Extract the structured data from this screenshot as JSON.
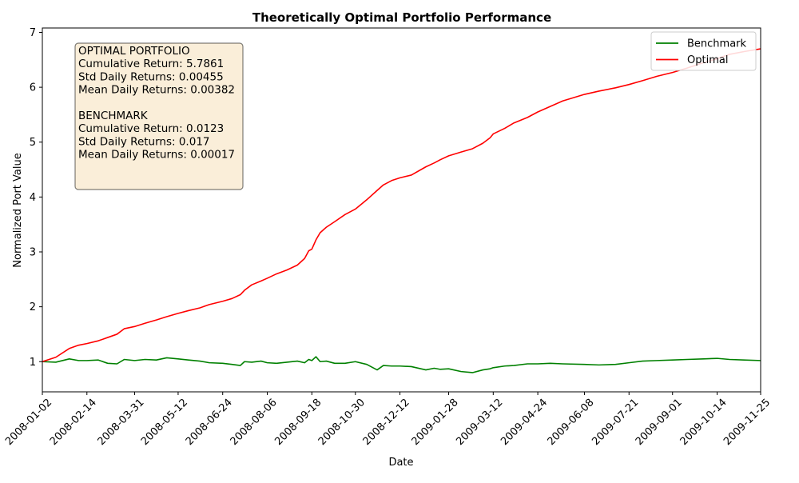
{
  "chart_data": {
    "type": "line",
    "title": "Theoretically Optimal Portfolio Performance",
    "xlabel": "Date",
    "ylabel": "Normalized Port Value",
    "xlim": [
      "2008-01-02",
      "2009-11-25"
    ],
    "ylim": [
      0.45,
      7.08
    ],
    "x_ticks": [
      "2008-01-02",
      "2008-02-14",
      "2008-03-31",
      "2008-05-12",
      "2008-06-24",
      "2008-08-06",
      "2008-09-18",
      "2008-10-30",
      "2008-12-12",
      "2009-01-28",
      "2009-03-12",
      "2009-04-24",
      "2009-06-08",
      "2009-07-21",
      "2009-09-01",
      "2009-10-14",
      "2009-11-25"
    ],
    "y_ticks": [
      "1",
      "2",
      "3",
      "4",
      "5",
      "6",
      "7"
    ],
    "y_tick_values": [
      1,
      2,
      3,
      4,
      5,
      6,
      7
    ],
    "legend_position": "top-right",
    "series": [
      {
        "name": "Benchmark",
        "color": "#008000",
        "x": [
          "2008-01-02",
          "2008-01-15",
          "2008-01-28",
          "2008-02-06",
          "2008-02-14",
          "2008-02-25",
          "2008-03-05",
          "2008-03-14",
          "2008-03-21",
          "2008-03-31",
          "2008-04-10",
          "2008-04-21",
          "2008-05-01",
          "2008-05-12",
          "2008-05-22",
          "2008-06-02",
          "2008-06-11",
          "2008-06-24",
          "2008-07-03",
          "2008-07-11",
          "2008-07-15",
          "2008-07-22",
          "2008-07-31",
          "2008-08-06",
          "2008-08-15",
          "2008-08-25",
          "2008-09-04",
          "2008-09-11",
          "2008-09-15",
          "2008-09-18",
          "2008-09-22",
          "2008-09-26",
          "2008-10-02",
          "2008-10-10",
          "2008-10-20",
          "2008-10-30",
          "2008-11-10",
          "2008-11-20",
          "2008-11-26",
          "2008-12-04",
          "2008-12-12",
          "2008-12-23",
          "2009-01-06",
          "2009-01-14",
          "2009-01-20",
          "2009-01-28",
          "2009-02-09",
          "2009-02-20",
          "2009-03-02",
          "2009-03-09",
          "2009-03-12",
          "2009-03-23",
          "2009-04-01",
          "2009-04-14",
          "2009-04-24",
          "2009-05-06",
          "2009-05-18",
          "2009-06-08",
          "2009-06-22",
          "2009-07-08",
          "2009-07-21",
          "2009-08-03",
          "2009-08-17",
          "2009-09-01",
          "2009-09-15",
          "2009-10-01",
          "2009-10-14",
          "2009-10-26",
          "2009-11-09",
          "2009-11-25"
        ],
        "values": [
          1.0,
          0.99,
          1.05,
          1.02,
          1.02,
          1.03,
          0.97,
          0.96,
          1.04,
          1.02,
          1.04,
          1.03,
          1.07,
          1.05,
          1.03,
          1.01,
          0.98,
          0.97,
          0.95,
          0.93,
          1.0,
          0.99,
          1.01,
          0.98,
          0.97,
          0.99,
          1.01,
          0.98,
          1.04,
          1.02,
          1.09,
          1.0,
          1.01,
          0.97,
          0.97,
          1.0,
          0.95,
          0.85,
          0.93,
          0.92,
          0.92,
          0.91,
          0.85,
          0.88,
          0.86,
          0.87,
          0.82,
          0.8,
          0.85,
          0.87,
          0.89,
          0.92,
          0.93,
          0.96,
          0.96,
          0.97,
          0.96,
          0.95,
          0.94,
          0.95,
          0.98,
          1.01,
          1.02,
          1.03,
          1.04,
          1.05,
          1.06,
          1.04,
          1.03,
          1.02
        ]
      },
      {
        "name": "Optimal",
        "color": "#ff0000",
        "x": [
          "2008-01-02",
          "2008-01-15",
          "2008-01-28",
          "2008-02-06",
          "2008-02-14",
          "2008-02-25",
          "2008-03-05",
          "2008-03-14",
          "2008-03-21",
          "2008-03-31",
          "2008-04-10",
          "2008-04-21",
          "2008-05-01",
          "2008-05-12",
          "2008-05-22",
          "2008-06-02",
          "2008-06-11",
          "2008-06-24",
          "2008-07-03",
          "2008-07-11",
          "2008-07-15",
          "2008-07-22",
          "2008-07-31",
          "2008-08-06",
          "2008-08-15",
          "2008-08-25",
          "2008-09-04",
          "2008-09-11",
          "2008-09-15",
          "2008-09-18",
          "2008-09-22",
          "2008-09-26",
          "2008-10-02",
          "2008-10-10",
          "2008-10-20",
          "2008-10-30",
          "2008-11-10",
          "2008-11-20",
          "2008-11-26",
          "2008-12-04",
          "2008-12-12",
          "2008-12-23",
          "2009-01-06",
          "2009-01-14",
          "2009-01-20",
          "2009-01-28",
          "2009-02-09",
          "2009-02-20",
          "2009-03-02",
          "2009-03-09",
          "2009-03-12",
          "2009-03-23",
          "2009-04-01",
          "2009-04-14",
          "2009-04-24",
          "2009-05-06",
          "2009-05-18",
          "2009-06-08",
          "2009-06-22",
          "2009-07-08",
          "2009-07-21",
          "2009-08-03",
          "2009-08-17",
          "2009-09-01",
          "2009-09-15",
          "2009-10-01",
          "2009-10-14",
          "2009-10-26",
          "2009-11-09",
          "2009-11-25"
        ],
        "values": [
          1.0,
          1.08,
          1.24,
          1.3,
          1.33,
          1.38,
          1.44,
          1.5,
          1.6,
          1.64,
          1.7,
          1.76,
          1.82,
          1.88,
          1.93,
          1.98,
          2.04,
          2.1,
          2.15,
          2.22,
          2.3,
          2.4,
          2.47,
          2.52,
          2.6,
          2.67,
          2.76,
          2.88,
          3.02,
          3.05,
          3.22,
          3.35,
          3.45,
          3.55,
          3.68,
          3.78,
          3.95,
          4.12,
          4.22,
          4.3,
          4.35,
          4.4,
          4.55,
          4.62,
          4.68,
          4.75,
          4.82,
          4.88,
          4.98,
          5.08,
          5.15,
          5.25,
          5.35,
          5.45,
          5.55,
          5.65,
          5.75,
          5.87,
          5.93,
          5.99,
          6.05,
          6.12,
          6.2,
          6.27,
          6.35,
          6.45,
          6.52,
          6.6,
          6.65,
          6.7
        ]
      }
    ],
    "annotation_lines": [
      "OPTIMAL PORTFOLIO",
      "Cumulative Return: 5.7861",
      "Std Daily Returns: 0.00455",
      "Mean Daily Returns: 0.00382",
      "",
      "BENCHMARK",
      "Cumulative Return: 0.0123",
      "Std Daily Returns: 0.017",
      "Mean Daily Returns: 0.00017"
    ]
  }
}
